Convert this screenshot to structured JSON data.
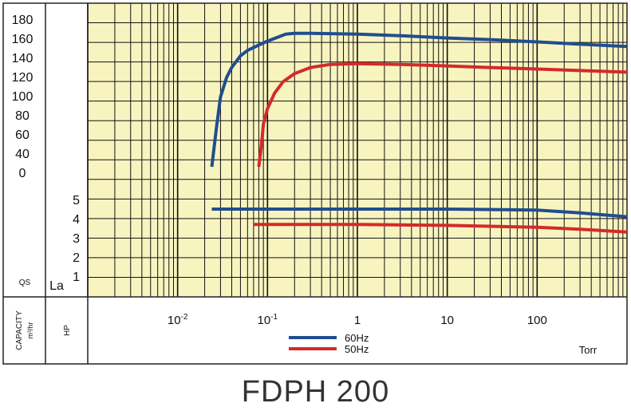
{
  "title": "FDPH 200",
  "chart_data": {
    "type": "line",
    "x_scale": "log",
    "xlim": [
      0.001,
      1000
    ],
    "x_tick_labels": [
      {
        "value": 0.01,
        "base": "10",
        "exp": "-2"
      },
      {
        "value": 0.1,
        "base": "10",
        "exp": "-1"
      },
      {
        "value": 1,
        "text": "1"
      },
      {
        "value": 10,
        "text": "10"
      },
      {
        "value": 100,
        "text": "100"
      }
    ],
    "x_unit": "Torr",
    "capacity_axis": {
      "label": "CAPACITY",
      "unit": "m³/hr",
      "corner_label": "QS",
      "ticks": [
        0,
        40,
        60,
        80,
        100,
        120,
        140,
        160,
        180
      ]
    },
    "hp_axis": {
      "label": "HP",
      "corner_label": "La",
      "ticks": [
        1,
        2,
        3,
        4,
        5
      ]
    },
    "series": [
      {
        "name": "60Hz",
        "color": "#1f4e8f",
        "axis": "capacity",
        "x": [
          0.024,
          0.027,
          0.03,
          0.035,
          0.04,
          0.05,
          0.06,
          0.08,
          0.1,
          0.13,
          0.16,
          0.2,
          0.3,
          1,
          3,
          10,
          30,
          100,
          300,
          1000
        ],
        "y": [
          0,
          50,
          90,
          115,
          128,
          143,
          150,
          157,
          162,
          167,
          171,
          172,
          172,
          171,
          169,
          166,
          164,
          161,
          158,
          155
        ]
      },
      {
        "name": "50Hz",
        "color": "#d42a2a",
        "axis": "capacity",
        "x": [
          0.08,
          0.085,
          0.09,
          0.1,
          0.12,
          0.15,
          0.2,
          0.3,
          0.5,
          1,
          3,
          10,
          30,
          100,
          300,
          1000
        ],
        "y": [
          0,
          25,
          55,
          75,
          95,
          110,
          120,
          128,
          132,
          133,
          132,
          130,
          128,
          126,
          124,
          122
        ]
      },
      {
        "name": "60Hz",
        "color": "#1f4e8f",
        "axis": "hp",
        "x": [
          0.024,
          0.1,
          1,
          10,
          100,
          300,
          1000
        ],
        "y": [
          4.5,
          4.5,
          4.5,
          4.5,
          4.45,
          4.3,
          4.1
        ]
      },
      {
        "name": "50Hz",
        "color": "#d42a2a",
        "axis": "hp",
        "x": [
          0.07,
          0.3,
          1,
          10,
          100,
          300,
          1000
        ],
        "y": [
          3.7,
          3.7,
          3.7,
          3.65,
          3.55,
          3.45,
          3.3
        ]
      }
    ],
    "legend": [
      {
        "name": "60Hz",
        "color": "#1f4e8f"
      },
      {
        "name": "50Hz",
        "color": "#d42a2a"
      }
    ],
    "legend_position": "bottom-center",
    "grid": true,
    "plot_background": "#f8f4c0"
  }
}
